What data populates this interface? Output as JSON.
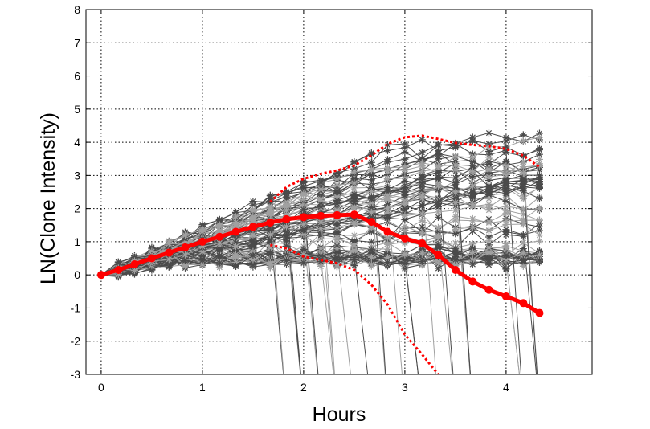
{
  "chart_data": {
    "type": "line",
    "title": "",
    "xlabel": "Hours",
    "ylabel": "LN(Clone Intensity)",
    "xlim": [
      -0.15,
      4.85
    ],
    "ylim": [
      -3,
      8
    ],
    "xticks": [
      "0",
      "1",
      "2",
      "3",
      "4"
    ],
    "yticks": [
      "-3",
      "-2",
      "-1",
      "0",
      "1",
      "2",
      "3",
      "4",
      "5",
      "6",
      "7",
      "8"
    ],
    "grid": true,
    "grid_style": "dotted",
    "legend": "none",
    "x": [
      0,
      0.17,
      0.33,
      0.5,
      0.67,
      0.83,
      1.0,
      1.17,
      1.33,
      1.5,
      1.67,
      1.83,
      2.0,
      2.17,
      2.33,
      2.5,
      2.67,
      2.83,
      3.0,
      3.17,
      3.33,
      3.5,
      3.67,
      3.83,
      4.0,
      4.17,
      4.33
    ],
    "colors": {
      "mean": "#ff0000",
      "bounds": "#ff0000",
      "trace_dark": "#4a4a4a",
      "trace_light": "#a0a0a0"
    },
    "series": [
      {
        "role": "mean",
        "style": "thick red line with dot markers",
        "values": [
          0.0,
          0.15,
          0.32,
          0.5,
          0.67,
          0.83,
          1.0,
          1.15,
          1.3,
          1.45,
          1.58,
          1.68,
          1.74,
          1.78,
          1.8,
          1.82,
          1.6,
          1.3,
          1.1,
          0.95,
          0.6,
          0.15,
          -0.2,
          -0.45,
          -0.65,
          -0.85,
          -1.15
        ]
      },
      {
        "role": "upper-bound",
        "style": "red dotted line",
        "values": [
          null,
          null,
          null,
          null,
          null,
          null,
          null,
          null,
          null,
          null,
          2.2,
          2.65,
          2.9,
          3.05,
          3.15,
          3.3,
          3.6,
          3.95,
          4.15,
          4.2,
          4.1,
          3.98,
          3.92,
          3.88,
          3.8,
          3.6,
          3.25
        ]
      },
      {
        "role": "lower-bound",
        "style": "red dotted line",
        "values": [
          null,
          null,
          null,
          null,
          null,
          null,
          null,
          null,
          null,
          null,
          0.9,
          0.8,
          0.55,
          0.45,
          0.35,
          0.15,
          -0.3,
          -0.9,
          -1.8,
          -2.4,
          -3.0,
          null,
          null,
          null,
          null,
          null,
          null
        ]
      }
    ],
    "individual_traces": {
      "description": "many gray individual clone traces with asterisk markers",
      "count": 90,
      "start_value": 0,
      "value_range_at_end": [
        -3,
        4.1
      ],
      "dropout_range_hours": [
        1.7,
        4.4
      ]
    }
  }
}
